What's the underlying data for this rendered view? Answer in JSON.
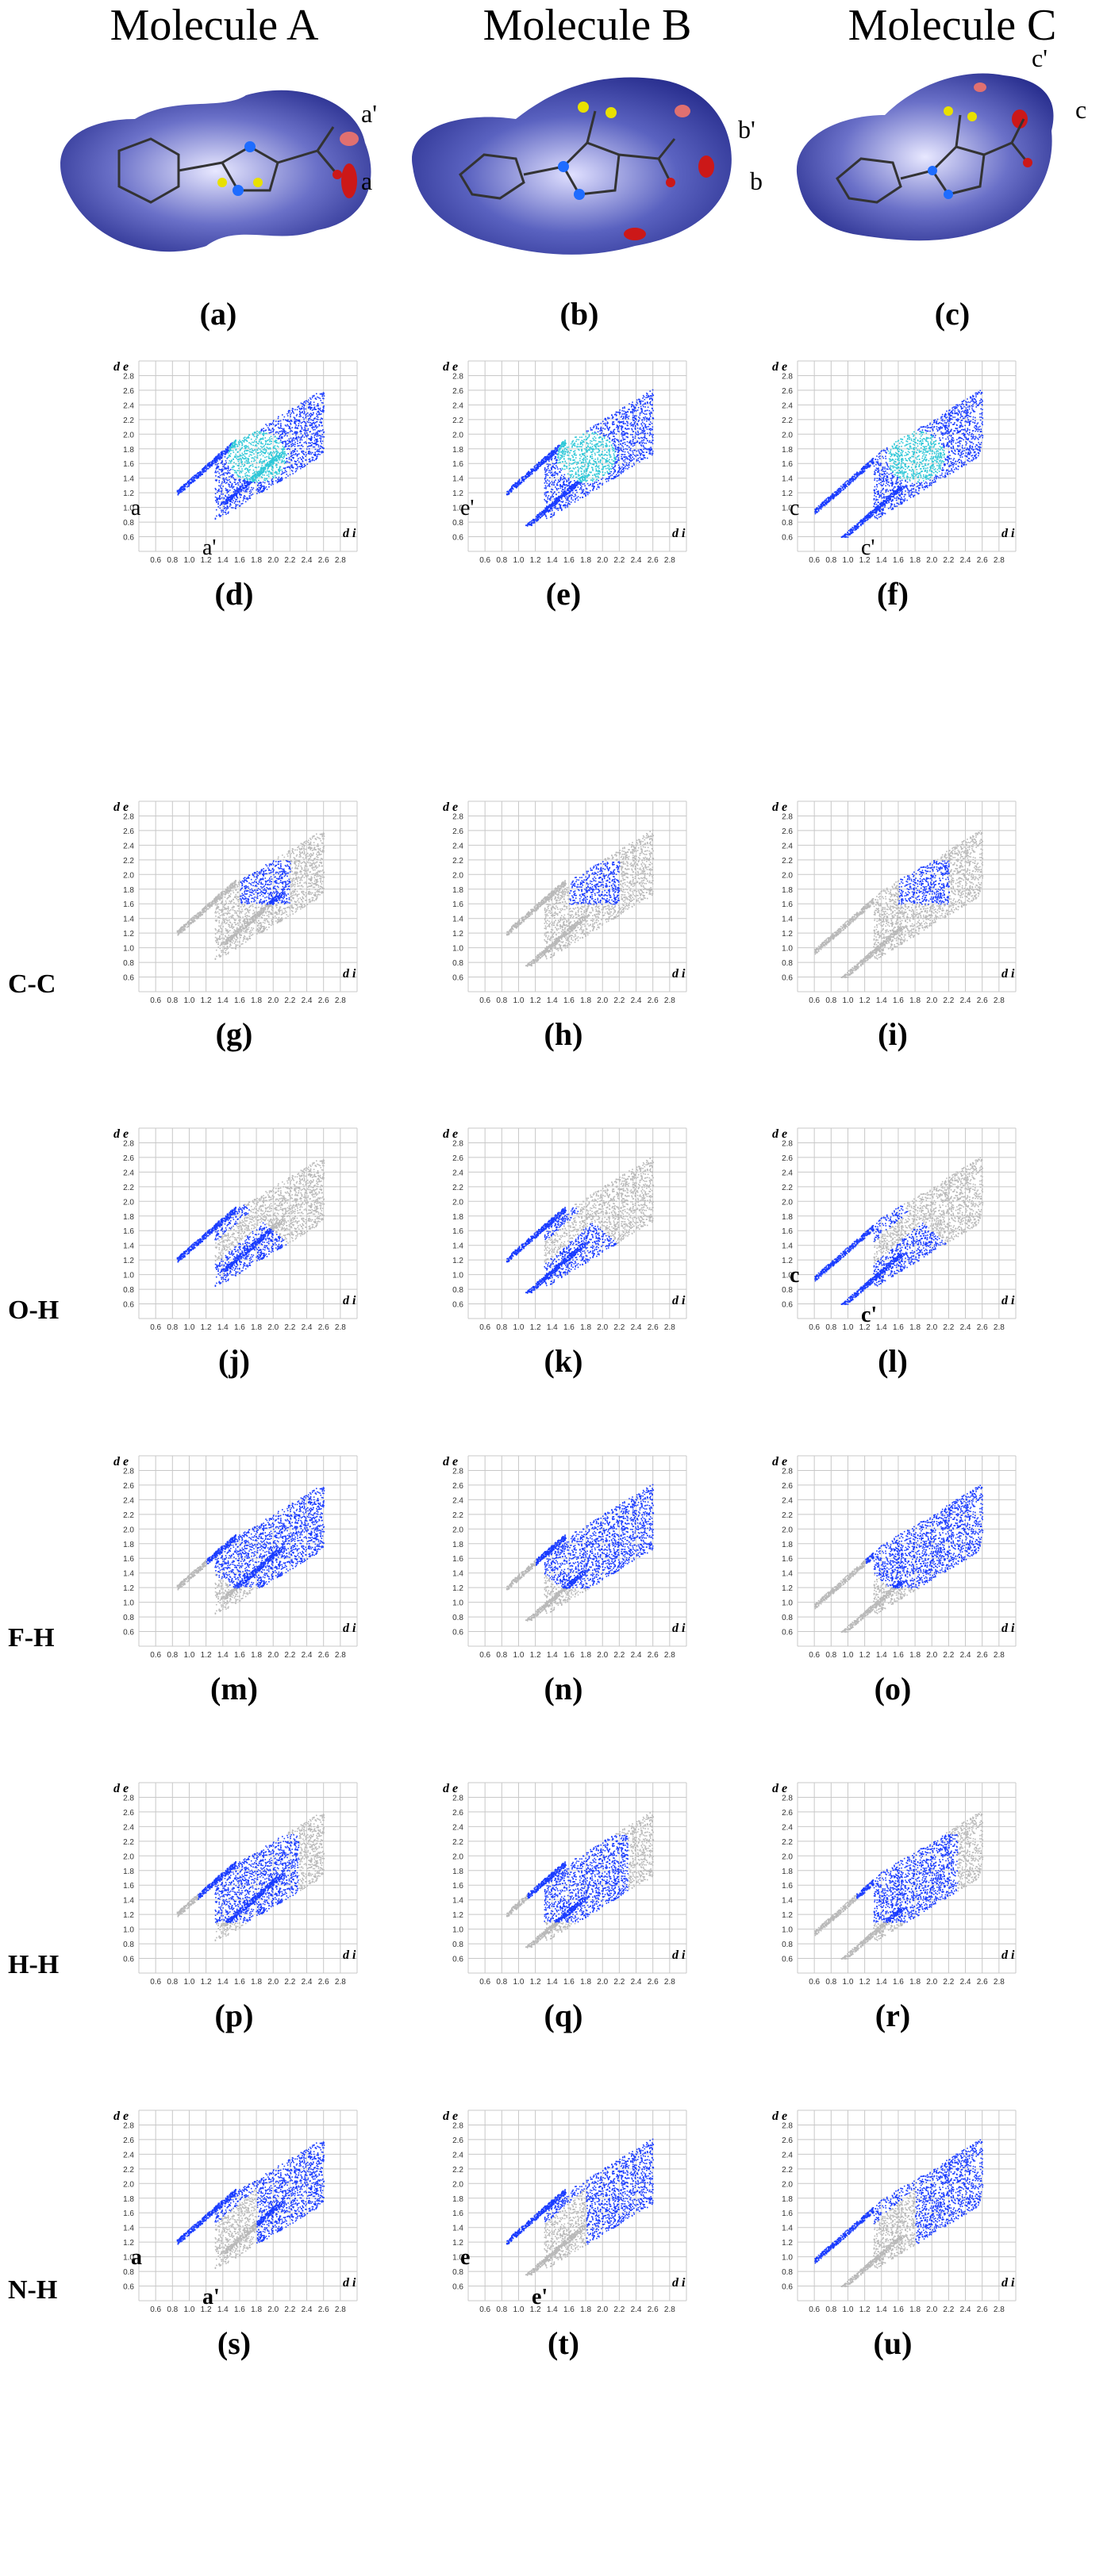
{
  "figure": {
    "column_titles": [
      "Molecule A",
      "Molecule B",
      "Molecule C"
    ],
    "surface_panels": [
      {
        "label": "(a)",
        "annotations": [
          "a'",
          "a"
        ]
      },
      {
        "label": "(b)",
        "annotations": [
          "b'",
          "b"
        ]
      },
      {
        "label": "(c)",
        "annotations": [
          "c'",
          "c"
        ]
      }
    ],
    "row_labels": [
      "C-C",
      "O-H",
      "F-H",
      "H-H",
      "N-H"
    ],
    "plot_labels": [
      "(d)",
      "(e)",
      "(f)",
      "(g)",
      "(h)",
      "(i)",
      "(j)",
      "(k)",
      "(l)",
      "(m)",
      "(n)",
      "(o)",
      "(p)",
      "(q)",
      "(r)",
      "(s)",
      "(t)",
      "(u)"
    ],
    "axis": {
      "y_label": "d e",
      "x_label": "d i",
      "x_ticks": [
        "0.6",
        "0.8",
        "1.0",
        "1.2",
        "1.4",
        "1.6",
        "1.8",
        "2.0",
        "2.2",
        "2.4",
        "2.6",
        "2.8"
      ],
      "y_ticks": [
        "0.6",
        "0.8",
        "1.0",
        "1.2",
        "1.4",
        "1.6",
        "1.8",
        "2.0",
        "2.2",
        "2.4",
        "2.6",
        "2.8"
      ],
      "range": [
        0.4,
        3.0
      ]
    },
    "plot_annotations": {
      "d": [
        "a",
        "a'"
      ],
      "e": [
        "e'"
      ],
      "f": [
        "c",
        "c'"
      ],
      "l": [
        "c",
        "c'"
      ],
      "s": [
        "a",
        "a'"
      ],
      "t": [
        "e",
        "e'"
      ]
    },
    "colors": {
      "fingerprint_blue": "#1a3cff",
      "fingerprint_cyan": "#30c8d8",
      "grey_full": "#b9b9b9",
      "surface_blue": "#3038a8",
      "surface_red": "#cc1818",
      "grid": "#c8c8c8"
    }
  }
}
